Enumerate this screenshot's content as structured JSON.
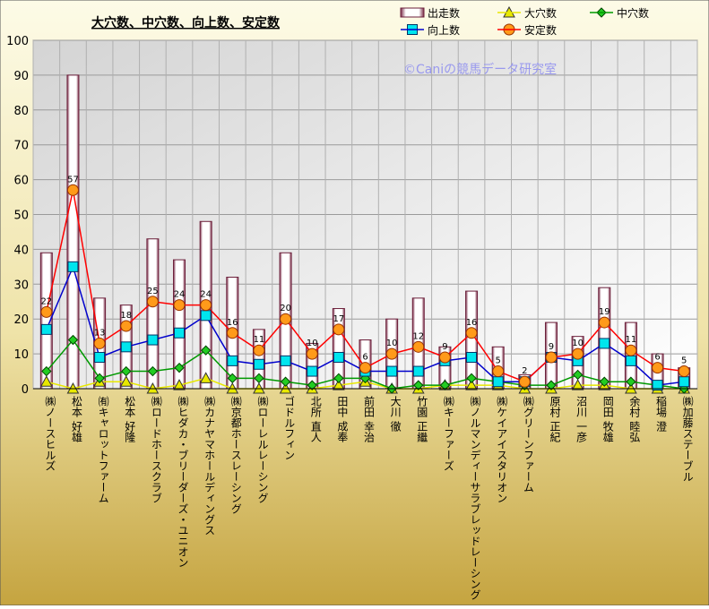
{
  "chart_data": {
    "type": "bar",
    "title": "大穴数、中穴数、向上数、安定数",
    "watermark": "©Caniの競馬データ研究室",
    "ylim": [
      0,
      100
    ],
    "yticks": [
      0,
      10,
      20,
      30,
      40,
      50,
      60,
      70,
      80,
      90,
      100
    ],
    "legend_position": "top-right",
    "grid": true,
    "categories": [
      "㈱ノースヒルズ",
      "松本 好雄",
      "㈲キャロットファーム",
      "松本 好隆",
      "㈱ロードホースクラブ",
      "㈱ヒダカ・ブリーダーズ・ユニオン",
      "㈱カナヤマホールディングス",
      "㈱京都ホースレーシング",
      "㈱ローレルレーシング",
      "ゴドルフィン",
      "北所 直人",
      "田中 成奉",
      "前田 幸治",
      "大川 徹",
      "竹園 正繼",
      "㈱キーファーズ",
      "㈱ノルマンディーサラブレッドレーシング",
      "㈱ケイアイスタリオン",
      "㈱グリーンファーム",
      "原村 正紀",
      "沼川 一彦",
      "岡田 牧雄",
      "余村 睦弘",
      "稲場 澄",
      "㈱加藤ステーブル"
    ],
    "series": [
      {
        "name": "出走数",
        "type": "bar",
        "color": "#6b1f3a",
        "values": [
          39,
          90,
          26,
          24,
          43,
          37,
          48,
          32,
          17,
          39,
          13,
          23,
          14,
          20,
          26,
          12,
          28,
          12,
          4,
          19,
          15,
          29,
          19,
          10,
          6
        ]
      },
      {
        "name": "大穴数",
        "type": "line",
        "color": "#e8e800",
        "marker": "triangle",
        "values": [
          2,
          0,
          2,
          2,
          0,
          1,
          3,
          0,
          0,
          0,
          0,
          1,
          2,
          0,
          0,
          1,
          1,
          1,
          0,
          0,
          1,
          1,
          0,
          0,
          0
        ]
      },
      {
        "name": "中穴数",
        "type": "line",
        "color": "#009900",
        "marker": "diamond",
        "values": [
          5,
          14,
          3,
          5,
          5,
          6,
          11,
          3,
          3,
          2,
          1,
          3,
          3,
          0,
          1,
          1,
          3,
          2,
          1,
          1,
          4,
          2,
          2,
          1,
          0
        ]
      },
      {
        "name": "向上数",
        "type": "line",
        "color": "#0000cc",
        "marker": "square",
        "values": [
          17,
          35,
          9,
          12,
          14,
          16,
          21,
          8,
          7,
          8,
          5,
          9,
          5,
          5,
          5,
          8,
          9,
          2,
          2,
          9,
          8,
          13,
          8,
          1,
          2
        ]
      },
      {
        "name": "安定数",
        "type": "line",
        "color": "#ff0000",
        "marker": "circle",
        "values": [
          22,
          57,
          13,
          18,
          25,
          24,
          24,
          16,
          11,
          20,
          10,
          17,
          6,
          10,
          12,
          9,
          16,
          5,
          2,
          9,
          10,
          19,
          11,
          6,
          5
        ]
      }
    ],
    "data_labels": {
      "series": "安定数",
      "values": [
        22,
        57,
        13,
        18,
        25,
        24,
        24,
        16,
        11,
        20,
        10,
        17,
        6,
        10,
        12,
        9,
        16,
        5,
        2,
        9,
        10,
        19,
        11,
        6,
        5
      ]
    }
  }
}
